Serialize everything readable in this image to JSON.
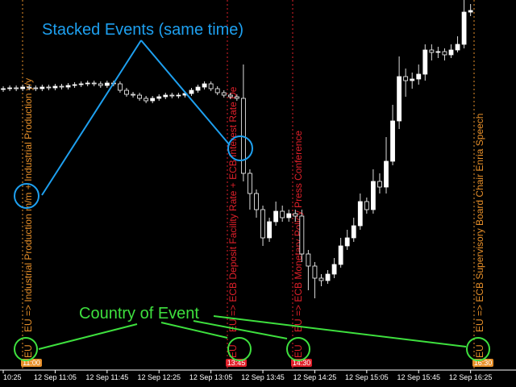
{
  "chart_data": {
    "type": "candlestick",
    "open": [
      349,
      350,
      351,
      350,
      352,
      351,
      350,
      352,
      351,
      353,
      352,
      354,
      355,
      356,
      357,
      356,
      354,
      357,
      356,
      348,
      343,
      342,
      338,
      335,
      338,
      340,
      342,
      341,
      342,
      344,
      348,
      352,
      356,
      350,
      345,
      342,
      340,
      338,
      245,
      220,
      200,
      165,
      185,
      198,
      190,
      195,
      192,
      145,
      130,
      115,
      112,
      120,
      132,
      155,
      165,
      180,
      210,
      200,
      235,
      228,
      260,
      310,
      365,
      360,
      362,
      368,
      398,
      395,
      396,
      392,
      398,
      405,
      445
    ],
    "high": [
      353,
      354,
      354,
      355,
      355,
      354,
      355,
      355,
      356,
      356,
      357,
      358,
      359,
      360,
      360,
      359,
      360,
      360,
      359,
      351,
      346,
      345,
      341,
      341,
      343,
      345,
      345,
      345,
      347,
      351,
      355,
      359,
      359,
      353,
      348,
      345,
      343,
      380,
      250,
      225,
      205,
      190,
      210,
      205,
      200,
      200,
      200,
      150,
      135,
      120,
      125,
      140,
      165,
      175,
      190,
      220,
      215,
      250,
      245,
      290,
      330,
      390,
      375,
      370,
      380,
      405,
      405,
      402,
      400,
      405,
      415,
      460,
      455
    ],
    "low": [
      346,
      347,
      347,
      347,
      348,
      347,
      347,
      348,
      348,
      349,
      349,
      351,
      352,
      353,
      353,
      351,
      351,
      353,
      345,
      340,
      339,
      335,
      332,
      332,
      335,
      337,
      338,
      338,
      339,
      341,
      345,
      349,
      347,
      342,
      339,
      337,
      335,
      235,
      200,
      190,
      155,
      160,
      180,
      185,
      185,
      185,
      135,
      100,
      90,
      105,
      108,
      115,
      128,
      150,
      160,
      175,
      195,
      195,
      220,
      220,
      255,
      300,
      340,
      350,
      355,
      360,
      385,
      388,
      385,
      388,
      395,
      400,
      440
    ],
    "close": [
      350,
      351,
      350,
      352,
      351,
      350,
      352,
      351,
      353,
      352,
      354,
      355,
      356,
      357,
      356,
      354,
      357,
      356,
      348,
      343,
      342,
      338,
      335,
      338,
      340,
      342,
      341,
      342,
      344,
      348,
      352,
      356,
      350,
      345,
      342,
      340,
      338,
      245,
      220,
      200,
      165,
      185,
      198,
      190,
      195,
      192,
      145,
      130,
      115,
      112,
      120,
      132,
      155,
      165,
      180,
      210,
      200,
      235,
      228,
      260,
      310,
      365,
      360,
      362,
      368,
      398,
      395,
      396,
      392,
      398,
      405,
      445,
      447
    ],
    "ylim": [
      0,
      460
    ],
    "xticks": [
      {
        "value": 0,
        "label": "10:25"
      },
      {
        "value": 8,
        "label": "12 Sep 11:05"
      },
      {
        "value": 16,
        "label": "12 Sep 11:45"
      },
      {
        "value": 24,
        "label": "12 Sep 12:25"
      },
      {
        "value": 32,
        "label": "12 Sep 13:05"
      },
      {
        "value": 40,
        "label": "12 Sep 13:45"
      },
      {
        "value": 48,
        "label": "12 Sep 14:25"
      },
      {
        "value": 56,
        "label": "12 Sep 15:05"
      },
      {
        "value": 64,
        "label": "12 Sep 15:45"
      },
      {
        "value": 72,
        "label": "12 Sep 16:25"
      }
    ],
    "xlim": [
      -0.5,
      79
    ],
    "events": [
      {
        "country": "EU",
        "text": "EU => Industrial Production m/m + Industrial Production y/y",
        "time": "11:00",
        "color": "#e8902a"
      },
      {
        "country": "EU",
        "text": "EU => ECB Deposit Facility Rate + ECB Interest Rate De",
        "time": "13:45",
        "color": "#e0202a"
      },
      {
        "country": "EU",
        "text": "EU => ECB Monetary Policy Press Conference",
        "time": "14:30",
        "color": "#e0202a"
      },
      {
        "country": "EU",
        "text": "EU => ECB Supervisory Board Chair Enria Speech",
        "time": "16:30",
        "color": "#e8902a"
      }
    ]
  },
  "annotations": {
    "stacked": "Stacked Events (same time)",
    "country": "Country of Event"
  }
}
